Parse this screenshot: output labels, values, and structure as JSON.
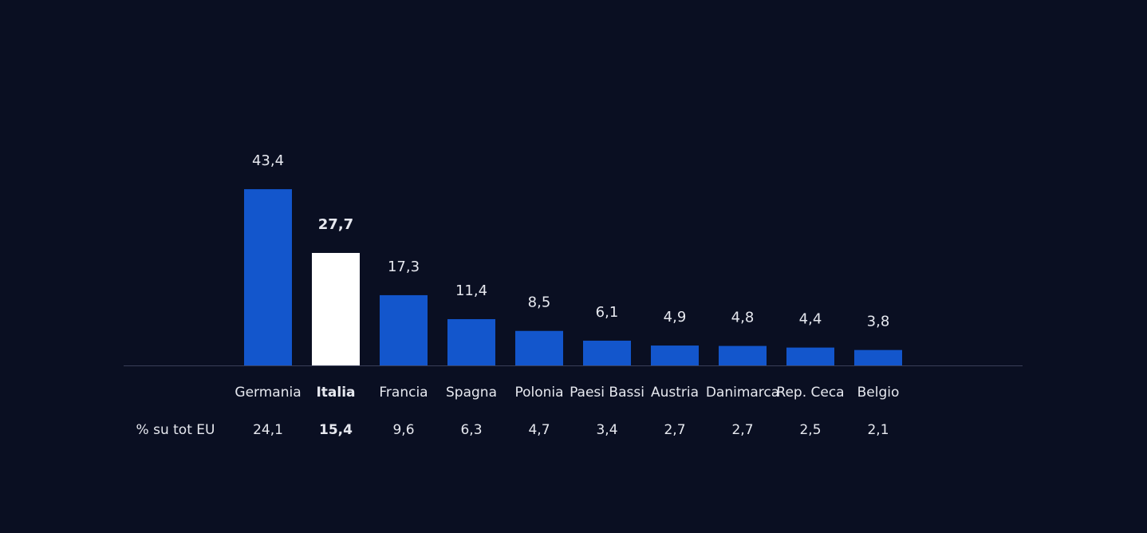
{
  "chart_data": {
    "type": "bar",
    "categories": [
      "Germania",
      "Italia",
      "Francia",
      "Spagna",
      "Polonia",
      "Paesi Bassi",
      "Austria",
      "Danimarca",
      "Rep. Ceca",
      "Belgio"
    ],
    "values": [
      43.4,
      27.7,
      17.3,
      11.4,
      8.5,
      6.1,
      4.9,
      4.8,
      4.4,
      3.8
    ],
    "value_labels": [
      "43,4",
      "27,7",
      "17,3",
      "11,4",
      "8,5",
      "6,1",
      "4,9",
      "4,8",
      "4,4",
      "3,8"
    ],
    "colors": [
      "#1356cc",
      "#ffffff",
      "#1356cc",
      "#1356cc",
      "#1356cc",
      "#1356cc",
      "#1356cc",
      "#1356cc",
      "#1356cc",
      "#1356cc"
    ],
    "ylim": [
      0,
      45
    ],
    "share_title": "% su tot EU",
    "shares": [
      "24,1",
      "15,4",
      "9,6",
      "6,3",
      "4,7",
      "3,4",
      "2,7",
      "2,7",
      "2,5",
      "2,1"
    ]
  }
}
